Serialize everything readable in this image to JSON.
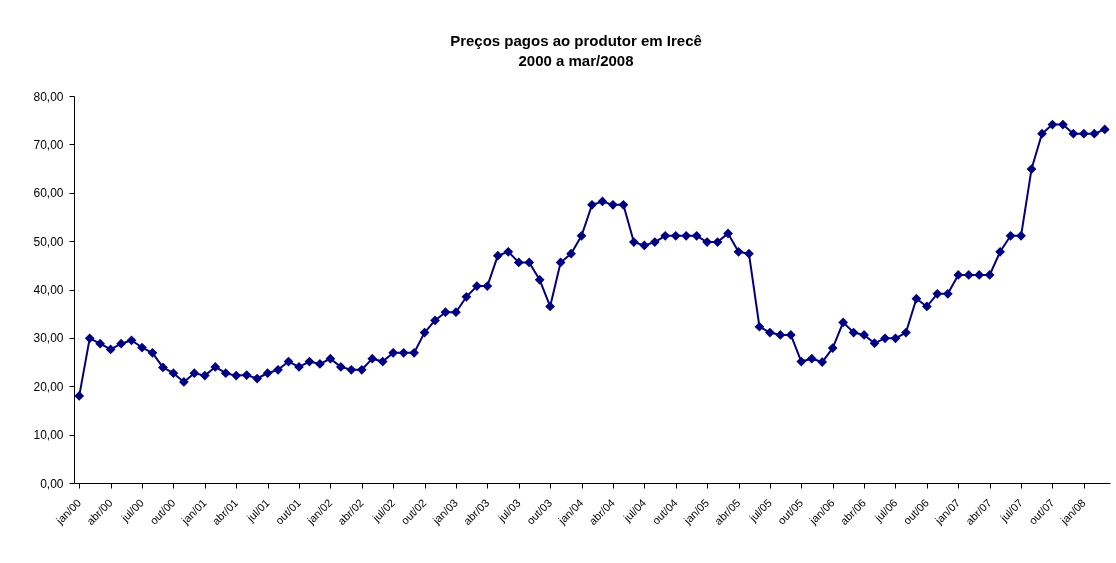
{
  "chart_data": {
    "type": "line",
    "title": "Preços pagos ao produtor em Irecê",
    "subtitle": "2000 a mar/2008",
    "categories": [
      "jan/00",
      null,
      null,
      "abr/00",
      null,
      null,
      "jul/00",
      null,
      null,
      "out/00",
      null,
      null,
      "jan/01",
      null,
      null,
      "abr/01",
      null,
      null,
      "jul/01",
      null,
      null,
      "out/01",
      null,
      null,
      "jan/02",
      null,
      null,
      "abr/02",
      null,
      null,
      "jul/02",
      null,
      null,
      "out/02",
      null,
      null,
      "jan/03",
      null,
      null,
      "abr/03",
      null,
      null,
      "jul/03",
      null,
      null,
      "out/03",
      null,
      null,
      "jan/04",
      null,
      null,
      "abr/04",
      null,
      null,
      "jul/04",
      null,
      null,
      "out/04",
      null,
      null,
      "jan/05",
      null,
      null,
      "abr/05",
      null,
      null,
      "jul/05",
      null,
      null,
      "out/05",
      null,
      null,
      "jan/06",
      null,
      null,
      "abr/06",
      null,
      null,
      "jul/06",
      null,
      null,
      "out/06",
      null,
      null,
      "jan/07",
      null,
      null,
      "abr/07",
      null,
      null,
      "jul/07",
      null,
      null,
      "out/07",
      null,
      null,
      "jan/08",
      null,
      null
    ],
    "values": [
      18.0,
      29.9,
      28.8,
      27.6,
      28.8,
      29.5,
      28.0,
      26.9,
      23.9,
      22.7,
      20.9,
      22.7,
      22.2,
      24.0,
      22.7,
      22.2,
      22.3,
      21.6,
      22.7,
      23.4,
      25.1,
      24.0,
      25.1,
      24.6,
      25.7,
      24.0,
      23.4,
      23.4,
      25.7,
      25.1,
      26.9,
      26.9,
      26.9,
      31.1,
      33.6,
      35.3,
      35.3,
      38.5,
      40.7,
      40.7,
      47.0,
      47.8,
      45.6,
      45.6,
      42.0,
      36.5,
      45.6,
      47.4,
      51.1,
      57.5,
      58.2,
      57.5,
      57.5,
      49.8,
      49.1,
      49.8,
      51.1,
      51.1,
      51.1,
      51.1,
      49.8,
      49.8,
      51.6,
      47.8,
      47.4,
      32.3,
      31.1,
      30.6,
      30.6,
      25.1,
      25.7,
      25.0,
      27.9,
      33.2,
      31.1,
      30.6,
      28.9,
      29.9,
      29.9,
      31.1,
      38.1,
      36.5,
      39.1,
      39.1,
      43.0,
      43.0,
      43.0,
      43.0,
      47.8,
      51.1,
      51.1,
      64.9,
      72.2,
      74.1,
      74.1,
      72.2,
      72.2,
      72.2,
      73.1
    ],
    "color": "#000080",
    "ylim": [
      0,
      80
    ],
    "yticks": [
      {
        "value": 0,
        "label": "0,00"
      },
      {
        "value": 10,
        "label": "10,00"
      },
      {
        "value": 20,
        "label": "20,00"
      },
      {
        "value": 30,
        "label": "30,00"
      },
      {
        "value": 40,
        "label": "40,00"
      },
      {
        "value": 50,
        "label": "50,00"
      },
      {
        "value": 60,
        "label": "60,00"
      },
      {
        "value": 70,
        "label": "70,00"
      },
      {
        "value": 80,
        "label": "80,00"
      }
    ],
    "marker": "diamond",
    "line_style": "solid",
    "grid": false
  }
}
